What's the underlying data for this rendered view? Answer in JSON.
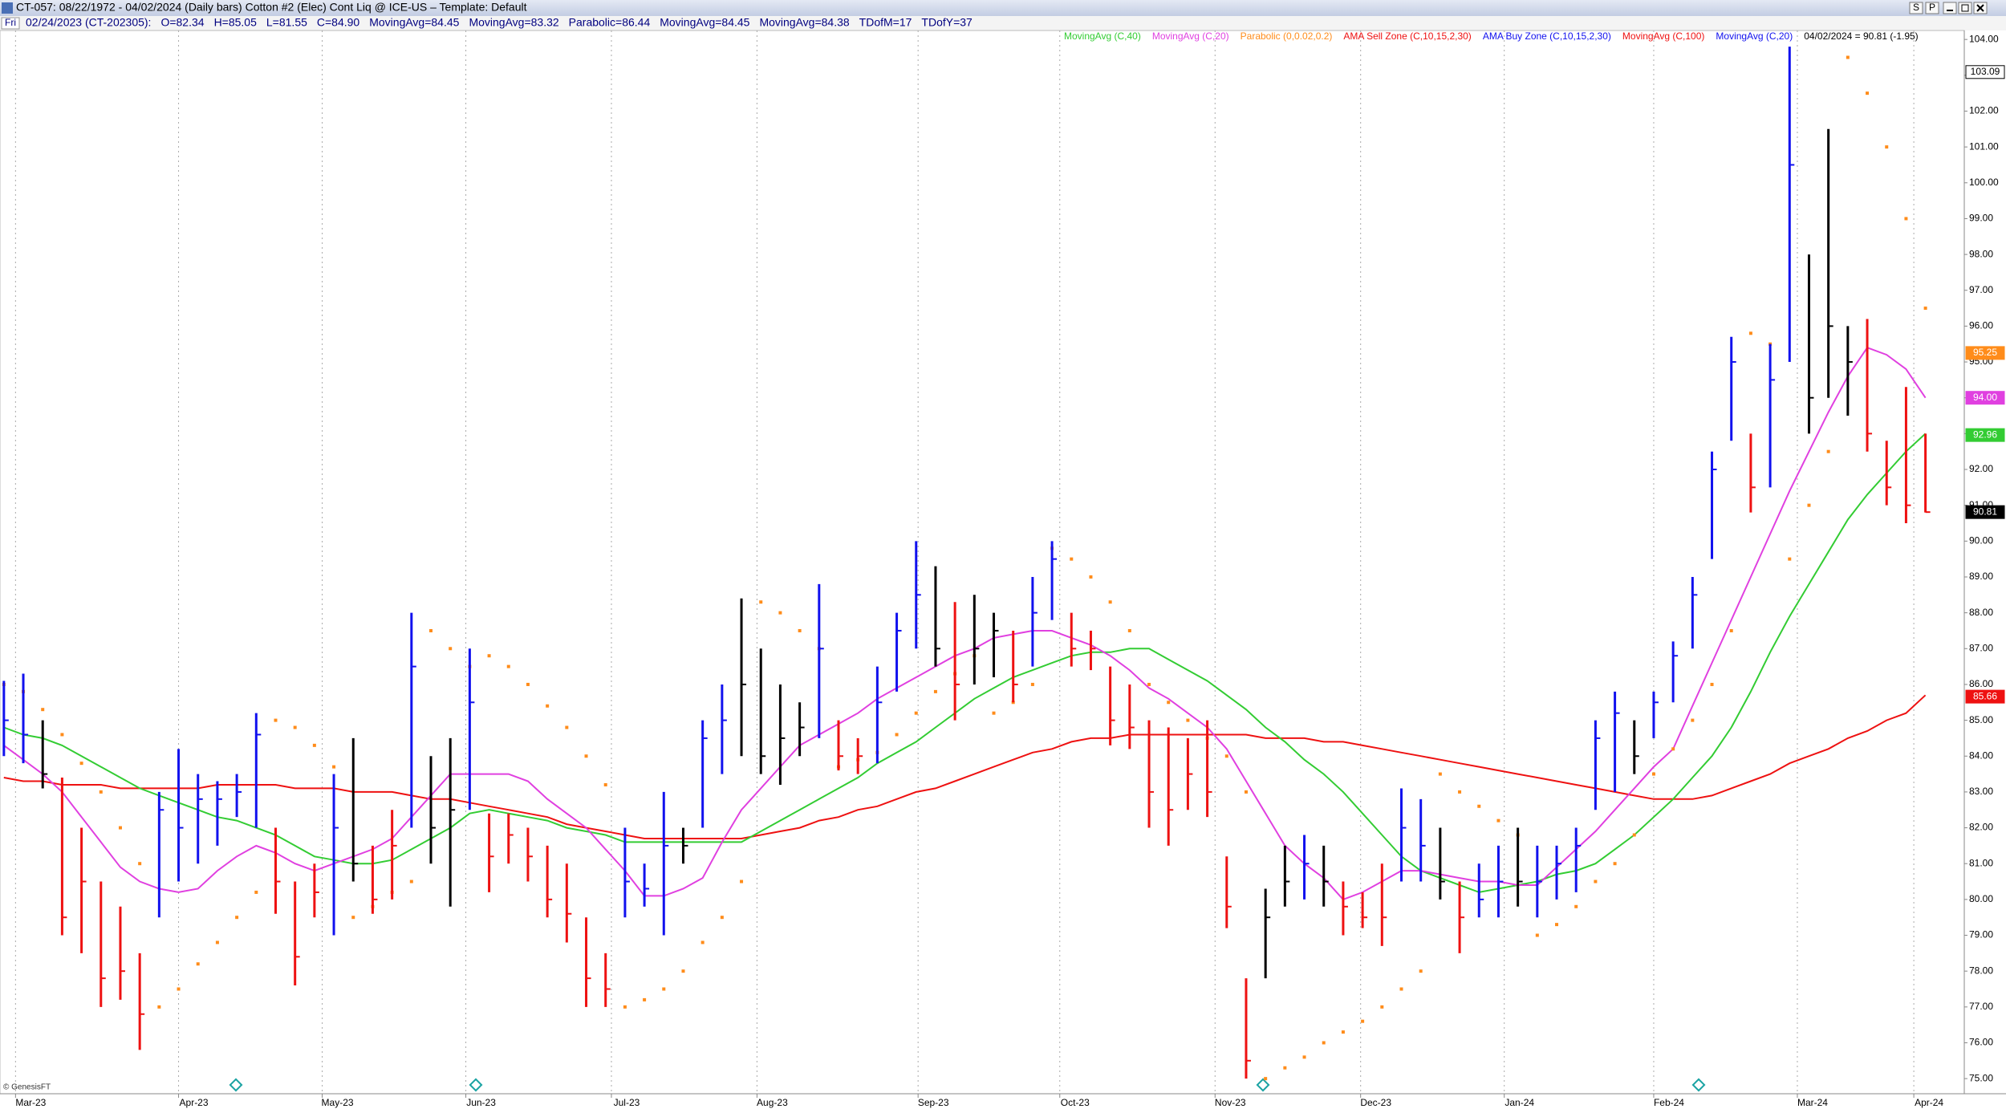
{
  "window": {
    "title": "CT-057:  08/22/1972 - 04/02/2024   (Daily bars)   Cotton #2 (Elec) Cont Liq @ ICE-US  –  Template: Default",
    "buttons": [
      "S",
      "P"
    ]
  },
  "info": {
    "day": "Fri",
    "items": [
      "02/24/2023 (CT-202305):",
      "O=82.34",
      "H=85.05",
      "L=81.55",
      "C=84.90",
      "MovingAvg=84.45",
      "MovingAvg=83.32",
      "Parabolic=86.44",
      "MovingAvg=84.45",
      "MovingAvg=84.38",
      "TDofM=17",
      "TDofY=37"
    ]
  },
  "chart_data": {
    "type": "ohlc",
    "xlim": [
      -0.2,
      101.0
    ],
    "xticks": [
      {
        "value": 0.6,
        "label": "Mar-23"
      },
      {
        "value": 9,
        "label": "Apr-23"
      },
      {
        "value": 16.4,
        "label": "May-23"
      },
      {
        "value": 23.8,
        "label": "Jun-23"
      },
      {
        "value": 31.3,
        "label": "Jul-23"
      },
      {
        "value": 38.8,
        "label": "Aug-23"
      },
      {
        "value": 47.1,
        "label": "Sep-23"
      },
      {
        "value": 54.4,
        "label": "Oct-23"
      },
      {
        "value": 62.4,
        "label": "Nov-23"
      },
      {
        "value": 69.9,
        "label": "Dec-23"
      },
      {
        "value": 77.3,
        "label": "Jan-24"
      },
      {
        "value": 85,
        "label": "Feb-24"
      },
      {
        "value": 92.4,
        "label": "Mar-24"
      },
      {
        "value": 98.4,
        "label": "Apr-24"
      }
    ],
    "ylim": [
      74.6,
      104.25
    ],
    "yticks": [
      {
        "value": 104,
        "label": "104.00"
      },
      {
        "value": 103,
        "label": "103.00"
      },
      {
        "value": 102,
        "label": "102.00"
      },
      {
        "value": 101,
        "label": "101.00"
      },
      {
        "value": 100,
        "label": "100.00"
      },
      {
        "value": 99,
        "label": "99.00"
      },
      {
        "value": 98,
        "label": "98.00"
      },
      {
        "value": 97,
        "label": "97.00"
      },
      {
        "value": 96,
        "label": "96.00"
      },
      {
        "value": 95,
        "label": "95.00"
      },
      {
        "value": 94,
        "label": "94.00"
      },
      {
        "value": 93,
        "label": "93.00"
      },
      {
        "value": 92,
        "label": "92.00"
      },
      {
        "value": 91,
        "label": "91.00"
      },
      {
        "value": 90,
        "label": "90.00"
      },
      {
        "value": 89,
        "label": "89.00"
      },
      {
        "value": 88,
        "label": "88.00"
      },
      {
        "value": 87,
        "label": "87.00"
      },
      {
        "value": 86,
        "label": "86.00"
      },
      {
        "value": 85,
        "label": "85.00"
      },
      {
        "value": 84,
        "label": "84.00"
      },
      {
        "value": 83,
        "label": "83.00"
      },
      {
        "value": 82,
        "label": "82.00"
      },
      {
        "value": 81,
        "label": "81.00"
      },
      {
        "value": 80,
        "label": "80.00"
      },
      {
        "value": 79,
        "label": "79.00"
      },
      {
        "value": 78,
        "label": "78.00"
      },
      {
        "value": 77,
        "label": "77.00"
      },
      {
        "value": 76,
        "label": "76.00"
      },
      {
        "value": 75,
        "label": "75.00"
      }
    ],
    "grid": "x",
    "legend": [
      {
        "name": "MovingAvg (C,40)",
        "color": "#33cc33"
      },
      {
        "name": "MovingAvg (C,20)",
        "color": "#e040e0"
      },
      {
        "name": "Parabolic (0,0.02,0.2)",
        "color": "#ff8c1a"
      },
      {
        "name": "AMA Sell Zone (C,10,15,2,30)",
        "color": "#ee1111"
      },
      {
        "name": "AMA Buy Zone (C,10,15,2,30)",
        "color": "#1111ee"
      },
      {
        "name": "MovingAvg (C,100)",
        "color": "#ee1111"
      },
      {
        "name": "MovingAvg (C,20)",
        "color": "#1111ee"
      }
    ],
    "quote": "04/02/2024 = 90.81 (-1.95)",
    "copyright": "© GenesisFT",
    "bars": {
      "high": [
        86.1,
        86.3,
        85.0,
        83.4,
        82.0,
        80.5,
        79.8,
        78.5,
        83.0,
        84.2,
        83.5,
        83.3,
        83.5,
        85.2,
        82.0,
        80.5,
        81.0,
        83.5,
        84.5,
        81.5,
        82.5,
        88.0,
        84.0,
        84.5,
        87.0,
        82.4,
        82.4,
        82.0,
        81.5,
        81.0,
        79.5,
        78.5,
        82.0,
        81.0,
        83.0,
        82.0,
        85.0,
        86.0,
        88.4,
        87.0,
        86.0,
        85.5,
        88.8,
        85.0,
        84.5,
        86.5,
        88.0,
        90.0,
        89.3,
        88.3,
        88.5,
        88.0,
        87.5,
        89.0,
        90.0,
        88.0,
        87.5,
        86.5,
        86.0,
        85.0,
        84.8,
        84.5,
        85.0,
        81.2,
        77.8,
        80.3,
        81.5,
        81.8,
        81.5,
        80.5,
        80.2,
        81.0,
        83.1,
        82.8,
        82.0,
        80.5,
        81.0,
        81.5,
        82.0,
        81.5,
        81.5,
        82.0,
        85.0,
        85.8,
        85.0,
        85.8,
        87.2,
        89.0,
        92.5,
        95.7,
        93.0,
        95.5,
        103.8,
        98.0,
        101.5,
        96.0,
        96.2,
        92.8,
        94.3,
        93.0
      ],
      "low": [
        84.0,
        83.8,
        83.1,
        79.0,
        78.5,
        77.0,
        77.2,
        75.8,
        79.5,
        80.5,
        81.0,
        81.5,
        82.3,
        82.0,
        79.6,
        77.6,
        79.5,
        79.0,
        80.5,
        79.6,
        80.0,
        82.0,
        81.0,
        79.8,
        82.5,
        80.2,
        81.0,
        80.5,
        79.5,
        78.8,
        77.0,
        77.0,
        79.5,
        79.8,
        79.0,
        81.0,
        82.0,
        83.5,
        84.0,
        83.5,
        83.2,
        84.0,
        84.5,
        83.6,
        83.5,
        83.8,
        85.8,
        87.0,
        86.5,
        85.0,
        86.0,
        86.2,
        85.5,
        86.5,
        87.8,
        86.5,
        86.4,
        84.3,
        84.2,
        82.0,
        81.5,
        82.5,
        82.3,
        79.2,
        75.0,
        77.8,
        79.8,
        80.0,
        79.8,
        79.0,
        79.2,
        78.7,
        80.5,
        80.5,
        80.0,
        78.5,
        79.5,
        79.5,
        79.8,
        79.5,
        80.0,
        80.2,
        82.5,
        83.0,
        83.5,
        84.5,
        85.5,
        87.0,
        89.5,
        92.8,
        90.8,
        91.5,
        95.0,
        93.0,
        94.0,
        93.5,
        92.5,
        91.0,
        90.5,
        90.8
      ],
      "close": [
        85.0,
        84.6,
        83.5,
        79.5,
        80.5,
        77.8,
        78.0,
        76.8,
        82.5,
        82.0,
        82.8,
        82.8,
        83.0,
        84.6,
        80.5,
        78.4,
        80.2,
        82.0,
        81.0,
        80.0,
        81.5,
        86.5,
        82.0,
        82.5,
        85.5,
        81.2,
        81.8,
        81.2,
        80.0,
        79.6,
        77.8,
        77.5,
        80.5,
        80.3,
        81.5,
        81.5,
        84.5,
        85.0,
        86.0,
        84.0,
        84.5,
        84.8,
        87.0,
        84.0,
        84.0,
        85.5,
        87.5,
        88.5,
        87.0,
        86.0,
        87.0,
        87.5,
        86.0,
        88.0,
        89.5,
        87.0,
        87.0,
        85.0,
        84.8,
        83.0,
        82.5,
        83.5,
        83.0,
        79.8,
        75.5,
        79.5,
        80.5,
        81.0,
        80.5,
        79.8,
        79.5,
        79.5,
        82.0,
        81.5,
        80.5,
        79.5,
        80.0,
        80.5,
        80.5,
        80.5,
        81.0,
        81.5,
        84.5,
        85.2,
        84.0,
        85.5,
        86.8,
        88.5,
        92.0,
        95.0,
        91.5,
        94.5,
        100.5,
        94.0,
        96.0,
        95.0,
        93.0,
        91.5,
        91.0,
        90.81
      ],
      "colors": [
        "#1111ee",
        "#1111ee",
        "#000",
        "#ee1111",
        "#ee1111",
        "#ee1111",
        "#ee1111",
        "#ee1111",
        "#1111ee",
        "#1111ee",
        "#1111ee",
        "#1111ee",
        "#1111ee",
        "#1111ee",
        "#ee1111",
        "#ee1111",
        "#ee1111",
        "#1111ee",
        "#000",
        "#ee1111",
        "#ee1111",
        "#1111ee",
        "#000",
        "#000",
        "#1111ee",
        "#ee1111",
        "#ee1111",
        "#ee1111",
        "#ee1111",
        "#ee1111",
        "#ee1111",
        "#ee1111",
        "#1111ee",
        "#1111ee",
        "#1111ee",
        "#000",
        "#1111ee",
        "#1111ee",
        "#000",
        "#000",
        "#000",
        "#000",
        "#1111ee",
        "#ee1111",
        "#ee1111",
        "#1111ee",
        "#1111ee",
        "#1111ee",
        "#000",
        "#ee1111",
        "#000",
        "#000",
        "#ee1111",
        "#1111ee",
        "#1111ee",
        "#ee1111",
        "#ee1111",
        "#ee1111",
        "#ee1111",
        "#ee1111",
        "#ee1111",
        "#ee1111",
        "#ee1111",
        "#ee1111",
        "#ee1111",
        "#000",
        "#000",
        "#1111ee",
        "#000",
        "#ee1111",
        "#ee1111",
        "#ee1111",
        "#1111ee",
        "#1111ee",
        "#000",
        "#ee1111",
        "#1111ee",
        "#1111ee",
        "#000",
        "#1111ee",
        "#1111ee",
        "#1111ee",
        "#1111ee",
        "#1111ee",
        "#000",
        "#1111ee",
        "#1111ee",
        "#1111ee",
        "#1111ee",
        "#1111ee",
        "#ee1111",
        "#1111ee",
        "#1111ee",
        "#000",
        "#000",
        "#000",
        "#ee1111",
        "#ee1111",
        "#ee1111",
        "#ee1111"
      ]
    },
    "series": [
      {
        "color": "#ee1111",
        "style": "line",
        "values": [
          83.4,
          83.3,
          83.3,
          83.2,
          83.2,
          83.2,
          83.1,
          83.1,
          83.1,
          83.1,
          83.1,
          83.2,
          83.2,
          83.2,
          83.2,
          83.1,
          83.1,
          83.1,
          83.0,
          83.0,
          83.0,
          82.9,
          82.8,
          82.8,
          82.7,
          82.6,
          82.5,
          82.4,
          82.3,
          82.1,
          82.0,
          81.9,
          81.8,
          81.7,
          81.7,
          81.7,
          81.7,
          81.7,
          81.7,
          81.8,
          81.9,
          82.0,
          82.2,
          82.3,
          82.5,
          82.6,
          82.8,
          83.0,
          83.1,
          83.3,
          83.5,
          83.7,
          83.9,
          84.1,
          84.2,
          84.4,
          84.5,
          84.5,
          84.6,
          84.6,
          84.6,
          84.6,
          84.6,
          84.6,
          84.6,
          84.5,
          84.5,
          84.5,
          84.4,
          84.4,
          84.3,
          84.2,
          84.1,
          84.0,
          83.9,
          83.8,
          83.7,
          83.6,
          83.5,
          83.4,
          83.3,
          83.2,
          83.1,
          83.0,
          82.9,
          82.8,
          82.8,
          82.8,
          82.9,
          83.1,
          83.3,
          83.5,
          83.8,
          84.0,
          84.2,
          84.5,
          84.7,
          85.0,
          85.2,
          85.7
        ]
      },
      {
        "color": "#33cc33",
        "style": "line",
        "values": [
          84.8,
          84.6,
          84.5,
          84.3,
          84.0,
          83.7,
          83.4,
          83.1,
          82.9,
          82.7,
          82.5,
          82.3,
          82.2,
          82.0,
          81.8,
          81.5,
          81.2,
          81.1,
          81.0,
          81.0,
          81.1,
          81.4,
          81.7,
          82.0,
          82.4,
          82.5,
          82.4,
          82.3,
          82.2,
          82.0,
          81.9,
          81.8,
          81.6,
          81.6,
          81.6,
          81.6,
          81.6,
          81.6,
          81.6,
          81.9,
          82.2,
          82.5,
          82.8,
          83.1,
          83.4,
          83.8,
          84.1,
          84.4,
          84.8,
          85.2,
          85.6,
          85.9,
          86.2,
          86.4,
          86.6,
          86.8,
          86.9,
          86.9,
          87.0,
          87.0,
          86.7,
          86.4,
          86.1,
          85.7,
          85.3,
          84.8,
          84.4,
          83.9,
          83.5,
          83.0,
          82.4,
          81.8,
          81.2,
          80.8,
          80.6,
          80.4,
          80.2,
          80.3,
          80.4,
          80.5,
          80.7,
          80.8,
          81.0,
          81.4,
          81.8,
          82.3,
          82.8,
          83.4,
          84.0,
          84.8,
          85.8,
          86.9,
          87.9,
          88.8,
          89.7,
          90.6,
          91.3,
          91.9,
          92.5,
          93.0
        ]
      },
      {
        "color": "#e040e0",
        "style": "line",
        "values": [
          84.3,
          83.9,
          83.5,
          83.0,
          82.3,
          81.6,
          80.9,
          80.5,
          80.3,
          80.2,
          80.3,
          80.8,
          81.2,
          81.5,
          81.3,
          81.0,
          80.8,
          81.0,
          81.2,
          81.4,
          81.7,
          82.3,
          82.9,
          83.5,
          83.5,
          83.5,
          83.5,
          83.3,
          82.8,
          82.4,
          82.0,
          81.4,
          80.8,
          80.1,
          80.1,
          80.3,
          80.6,
          81.6,
          82.5,
          83.1,
          83.7,
          84.3,
          84.6,
          84.9,
          85.2,
          85.6,
          85.9,
          86.2,
          86.5,
          86.8,
          87.0,
          87.3,
          87.4,
          87.5,
          87.5,
          87.3,
          87.1,
          86.8,
          86.4,
          85.9,
          85.6,
          85.2,
          84.8,
          84.2,
          83.3,
          82.4,
          81.5,
          81.0,
          80.6,
          80.0,
          80.2,
          80.5,
          80.8,
          80.8,
          80.7,
          80.6,
          80.5,
          80.5,
          80.4,
          80.4,
          80.9,
          81.4,
          81.9,
          82.5,
          83.1,
          83.7,
          84.2,
          85.4,
          86.6,
          87.8,
          89.0,
          90.2,
          91.4,
          92.5,
          93.6,
          94.6,
          95.4,
          95.2,
          94.8,
          94.0
        ]
      },
      {
        "color": "#ff8c1a",
        "style": "dots",
        "values": [
          86.0,
          85.8,
          85.3,
          84.6,
          83.8,
          83.0,
          82.0,
          81.0,
          77.0,
          77.5,
          78.2,
          78.8,
          79.5,
          80.2,
          85.0,
          84.8,
          84.3,
          83.7,
          79.5,
          79.8,
          80.2,
          80.5,
          87.5,
          87.0,
          86.5,
          86.8,
          86.5,
          86.0,
          85.4,
          84.8,
          84.0,
          83.2,
          77.0,
          77.2,
          77.5,
          78.0,
          78.8,
          79.5,
          80.5,
          88.3,
          88.0,
          87.5,
          87.0,
          83.7,
          83.9,
          84.1,
          84.6,
          85.2,
          85.8,
          86.3,
          86.8,
          85.2,
          85.5,
          86.0,
          89.8,
          89.5,
          89.0,
          88.3,
          87.5,
          86.0,
          85.5,
          85.0,
          84.5,
          84.0,
          83.0,
          75.0,
          75.3,
          75.6,
          76.0,
          76.3,
          76.6,
          77.0,
          77.5,
          78.0,
          83.5,
          83.0,
          82.6,
          82.2,
          81.8,
          79.0,
          79.3,
          79.8,
          80.5,
          81.0,
          81.8,
          83.5,
          84.2,
          85.0,
          86.0,
          87.5,
          95.8,
          95.5,
          89.5,
          91.0,
          92.5,
          103.5,
          102.5,
          101.0,
          99.0,
          96.5
        ]
      }
    ],
    "value_boxes": [
      {
        "value": 103.09,
        "label": "103.09",
        "color": "#ffffff"
      },
      {
        "value": 95.25,
        "label": "95.25",
        "color": "#ff8c1a"
      },
      {
        "value": 94,
        "label": "94.00",
        "color": "#e040e0"
      },
      {
        "value": 92.96,
        "label": "92.96",
        "color": "#33cc33"
      },
      {
        "value": 90.81,
        "label": "90.81",
        "color": "#000000"
      },
      {
        "value": 85.66,
        "label": "85.66",
        "color": "#ee1111"
      }
    ]
  }
}
